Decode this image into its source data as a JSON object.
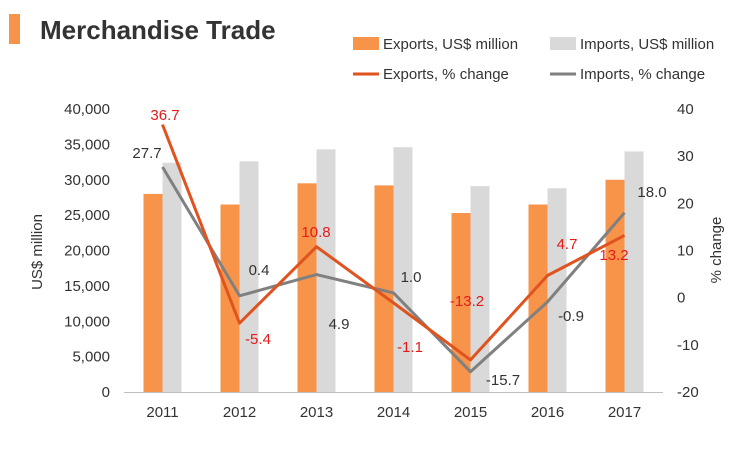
{
  "chart_data": {
    "type": "bar",
    "title": "Merchandise Trade",
    "categories": [
      "2011",
      "2012",
      "2013",
      "2014",
      "2015",
      "2016",
      "2017"
    ],
    "ylabel": "US$ million",
    "y2label": "% change",
    "ylim": [
      0,
      40000
    ],
    "y2lim": [
      -20,
      40
    ],
    "yticks": [
      "0",
      "5,000",
      "10,000",
      "15,000",
      "20,000",
      "25,000",
      "30,000",
      "35,000",
      "40,000"
    ],
    "y2ticks": [
      "-20",
      "-10",
      "0",
      "10",
      "20",
      "30",
      "40"
    ],
    "legend_position": "top-right",
    "grid": false,
    "series": [
      {
        "name": "Exports, US$ million",
        "kind": "bar",
        "axis": "left",
        "color": "#F7944A",
        "values": [
          28000,
          26500,
          29500,
          29200,
          25300,
          26500,
          30000
        ]
      },
      {
        "name": "Imports, US$ million",
        "kind": "bar",
        "axis": "left",
        "color": "#D9D9D9",
        "values": [
          32400,
          32600,
          34300,
          34600,
          29100,
          28800,
          34000
        ]
      },
      {
        "name": "Exports, % change",
        "kind": "line",
        "axis": "right",
        "color": "#E0531F",
        "values": [
          36.7,
          -5.4,
          10.8,
          -1.1,
          -13.2,
          4.7,
          13.2
        ],
        "labels": [
          "36.7",
          "-5.4",
          "10.8",
          "-1.1",
          "-13.2",
          "4.7",
          "13.2"
        ],
        "label_color": "#E31B1B"
      },
      {
        "name": "Imports, % change",
        "kind": "line",
        "axis": "right",
        "color": "#808080",
        "values": [
          27.7,
          0.4,
          4.9,
          1.0,
          -15.7,
          -0.9,
          18.0
        ],
        "labels": [
          "27.7",
          "0.4",
          "4.9",
          "1.0",
          "-15.7",
          "-0.9",
          "18.0"
        ],
        "label_color": "#333333"
      }
    ]
  },
  "colors": {
    "accent": "#F7944A"
  }
}
